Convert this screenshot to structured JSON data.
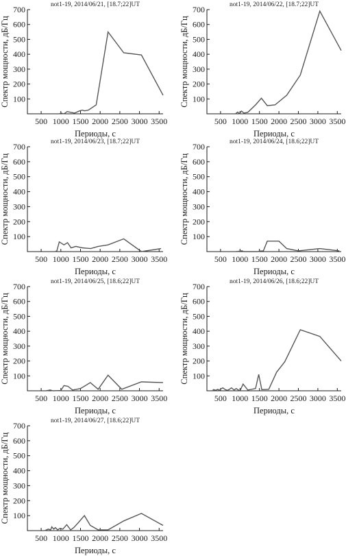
{
  "chart_data": [
    {
      "type": "line",
      "title": "not1-19, 2014/06/21, [18.7;22]UT",
      "xlabel": "Периоды, с",
      "ylabel": "Спектр мощности, дБ/Гц",
      "xlim": [
        150,
        3600
      ],
      "ylim": [
        0,
        700
      ],
      "xticks": [
        500,
        1000,
        1500,
        2000,
        2500,
        3000,
        3500
      ],
      "yticks": [
        100,
        200,
        300,
        400,
        500,
        600,
        700
      ],
      "x": [
        960,
        1010,
        1060,
        1100,
        1160,
        1250,
        1350,
        1480,
        1550,
        1600,
        1700,
        1900,
        2200,
        2600,
        3050,
        3600
      ],
      "y": [
        0,
        5,
        0,
        3,
        15,
        10,
        5,
        20,
        25,
        20,
        25,
        60,
        550,
        410,
        395,
        125
      ]
    },
    {
      "type": "line",
      "title": "not1-19, 2014/06/22, [18.7;22]UT",
      "xlabel": "Периоды, с",
      "ylabel": "Спектр мощности, дБ/Гц",
      "xlim": [
        150,
        3600
      ],
      "ylim": [
        0,
        700
      ],
      "xticks": [
        500,
        1000,
        1500,
        2000,
        2500,
        3000,
        3500
      ],
      "yticks": [
        100,
        200,
        300,
        400,
        500,
        600,
        700
      ],
      "x": [
        880,
        940,
        980,
        1040,
        1100,
        1200,
        1400,
        1550,
        1700,
        1900,
        2200,
        2550,
        3050,
        3600
      ],
      "y": [
        0,
        12,
        2,
        18,
        5,
        10,
        60,
        105,
        55,
        60,
        125,
        260,
        690,
        425
      ]
    },
    {
      "type": "line",
      "title": "not1-19, 2014/06/23, [18.7;22]UT",
      "xlabel": "Периоды, с",
      "ylabel": "Спектр мощности, дБ/Гц",
      "xlim": [
        150,
        3600
      ],
      "ylim": [
        0,
        700
      ],
      "xticks": [
        500,
        1000,
        1500,
        2000,
        2500,
        3000,
        3500
      ],
      "yticks": [
        100,
        200,
        300,
        400,
        500,
        600,
        700
      ],
      "x": [
        850,
        900,
        960,
        1080,
        1170,
        1260,
        1380,
        1550,
        1760,
        1950,
        2200,
        2600,
        3050,
        3550
      ],
      "y": [
        0,
        5,
        65,
        45,
        60,
        25,
        35,
        25,
        20,
        35,
        45,
        85,
        0,
        20
      ]
    },
    {
      "type": "line",
      "title": "not1-19, 2014/06/24, [18.6;22]UT",
      "xlabel": "Периоды, с",
      "ylabel": "Спектр мощности, дБ/Гц",
      "xlim": [
        150,
        3600
      ],
      "ylim": [
        0,
        700
      ],
      "xticks": [
        500,
        1000,
        1500,
        2000,
        2500,
        3000,
        3500
      ],
      "yticks": [
        100,
        200,
        300,
        400,
        500,
        600,
        700
      ],
      "x": [
        900,
        1000,
        1050,
        1100,
        1450,
        1500,
        1600,
        1700,
        1800,
        2000,
        2200,
        2500,
        3050,
        3550
      ],
      "y": [
        0,
        3,
        5,
        0,
        0,
        3,
        5,
        70,
        70,
        70,
        20,
        5,
        20,
        5
      ]
    },
    {
      "type": "line",
      "title": "not1-19, 2014/06/25, [18.6;22]UT",
      "xlabel": "Периоды, с",
      "ylabel": "Спектр мощности, дБ/Гц",
      "xlim": [
        150,
        3600
      ],
      "ylim": [
        0,
        700
      ],
      "xticks": [
        500,
        1000,
        1500,
        2000,
        2500,
        3000,
        3500
      ],
      "yticks": [
        100,
        200,
        300,
        400,
        500,
        600,
        700
      ],
      "x": [
        620,
        690,
        730,
        800,
        1000,
        1080,
        1180,
        1300,
        1500,
        1750,
        1950,
        2200,
        2550,
        3050,
        3600
      ],
      "y": [
        0,
        3,
        5,
        0,
        2,
        35,
        30,
        5,
        15,
        55,
        10,
        105,
        10,
        60,
        55
      ]
    },
    {
      "type": "line",
      "title": "not1-19, 2014/06/26, [18.6;22]UT",
      "xlabel": "Периоды, с",
      "ylabel": "Спектр мощности, дБ/Гц",
      "xlim": [
        150,
        3600
      ],
      "ylim": [
        0,
        700
      ],
      "xticks": [
        500,
        1000,
        1500,
        2000,
        2500,
        3000,
        3500
      ],
      "yticks": [
        100,
        200,
        300,
        400,
        500,
        600,
        700
      ],
      "x": [
        290,
        320,
        380,
        430,
        470,
        500,
        560,
        620,
        680,
        730,
        780,
        850,
        900,
        960,
        1000,
        1080,
        1200,
        1400,
        1480,
        1560,
        1740,
        1940,
        2150,
        2550,
        3050,
        3600
      ],
      "y": [
        0,
        8,
        3,
        10,
        2,
        12,
        20,
        8,
        3,
        10,
        20,
        5,
        15,
        5,
        0,
        45,
        5,
        15,
        110,
        8,
        10,
        125,
        195,
        410,
        365,
        200
      ]
    },
    {
      "type": "line",
      "title": "not1-19, 2014/06/27, [18.6;22]UT",
      "xlabel": "Периоды, с",
      "ylabel": "Спектр мощности, дБ/Гц",
      "xlim": [
        150,
        3600
      ],
      "ylim": [
        0,
        700
      ],
      "xticks": [
        500,
        1000,
        1500,
        2000,
        2500,
        3000,
        3500
      ],
      "yticks": [
        100,
        200,
        300,
        400,
        500,
        600,
        700
      ],
      "x": [
        580,
        620,
        680,
        740,
        770,
        820,
        860,
        920,
        980,
        1050,
        1150,
        1250,
        1330,
        1450,
        1600,
        1750,
        1950,
        2200,
        2600,
        3050,
        3600
      ],
      "y": [
        0,
        3,
        10,
        5,
        25,
        10,
        20,
        5,
        15,
        10,
        40,
        5,
        20,
        55,
        100,
        35,
        5,
        5,
        65,
        115,
        35
      ]
    }
  ]
}
